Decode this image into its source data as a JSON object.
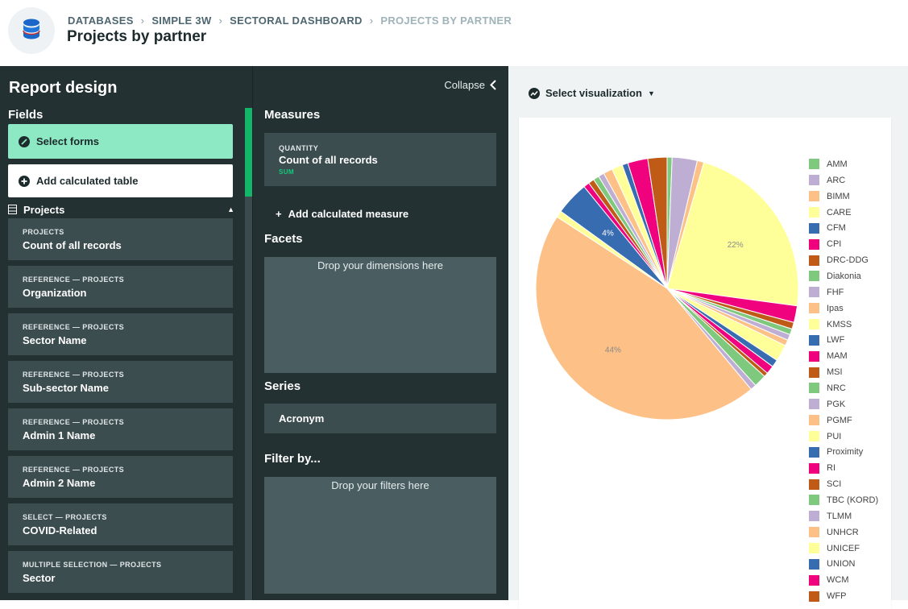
{
  "header": {
    "breadcrumbs": [
      "DATABASES",
      "SIMPLE 3W",
      "SECTORAL DASHBOARD",
      "PROJECTS BY PARTNER"
    ],
    "title": "Projects by partner"
  },
  "left": {
    "title": "Report design",
    "fields_label": "Fields",
    "select_forms_label": "Select forms",
    "add_table_label": "Add calculated table",
    "section_label": "Projects",
    "fields": [
      {
        "kind": "PROJECTS",
        "name": "Count of all records"
      },
      {
        "kind": "REFERENCE — PROJECTS",
        "name": "Organization"
      },
      {
        "kind": "REFERENCE — PROJECTS",
        "name": "Sector Name"
      },
      {
        "kind": "REFERENCE — PROJECTS",
        "name": "Sub-sector Name"
      },
      {
        "kind": "REFERENCE — PROJECTS",
        "name": "Admin 1 Name"
      },
      {
        "kind": "REFERENCE — PROJECTS",
        "name": "Admin 2 Name"
      },
      {
        "kind": "SELECT — PROJECTS",
        "name": "COVID-Related"
      },
      {
        "kind": "MULTIPLE SELECTION — PROJECTS",
        "name": "Sector"
      }
    ]
  },
  "middle": {
    "collapse_label": "Collapse",
    "measures_title": "Measures",
    "measure": {
      "kind": "QUANTITY",
      "name": "Count of all records",
      "agg": "SUM"
    },
    "add_measure_label": "Add calculated measure",
    "facets_title": "Facets",
    "facets_drop": "Drop your dimensions here",
    "series_title": "Series",
    "series_item": "Acronym",
    "filter_title": "Filter by...",
    "filter_drop": "Drop your filters here"
  },
  "right": {
    "viz_select_label": "Select visualization"
  },
  "chart_data": {
    "type": "pie",
    "title": "",
    "palette": [
      "#7fc97f",
      "#beaed4",
      "#fdc086",
      "#ffff99",
      "#386cb0",
      "#f0027f",
      "#bf5b17"
    ],
    "legend_position": "right",
    "slices": [
      {
        "label": "AMM",
        "value": 0.6,
        "color": "#7fc97f"
      },
      {
        "label": "ARC",
        "value": 3.0,
        "color": "#beaed4"
      },
      {
        "label": "BIMM",
        "value": 0.8,
        "color": "#fdc086"
      },
      {
        "label": "CARE",
        "value": 22.0,
        "color": "#ffff99",
        "text": "22%"
      },
      {
        "label": "CPI",
        "value": 2.0,
        "color": "#f0027f"
      },
      {
        "label": "DRC-DDG",
        "value": 0.8,
        "color": "#bf5b17"
      },
      {
        "label": "NRC",
        "value": 0.7,
        "color": "#7fc97f"
      },
      {
        "label": "PGK",
        "value": 0.7,
        "color": "#beaed4"
      },
      {
        "label": "PGMF",
        "value": 0.7,
        "color": "#fdc086"
      },
      {
        "label": "PUI",
        "value": 2.0,
        "color": "#ffff99"
      },
      {
        "label": "LWF",
        "value": 0.9,
        "color": "#386cb0"
      },
      {
        "label": "CPI",
        "value": 1.0,
        "color": "#f0027f"
      },
      {
        "label": "MSI",
        "value": 0.5,
        "color": "#bf5b17"
      },
      {
        "label": "NRC",
        "value": 1.5,
        "color": "#7fc97f"
      },
      {
        "label": "FHF",
        "value": 0.7,
        "color": "#beaed4"
      },
      {
        "label": "UNHCR",
        "value": 44.0,
        "color": "#fdc086",
        "text": "44%"
      },
      {
        "label": "UNICEF",
        "value": 0.8,
        "color": "#ffff99"
      },
      {
        "label": "CFM",
        "value": 4.0,
        "color": "#386cb0",
        "text": "4%"
      },
      {
        "label": "RI",
        "value": 0.7,
        "color": "#f0027f"
      },
      {
        "label": "SCI",
        "value": 0.7,
        "color": "#bf5b17"
      },
      {
        "label": "TBC (KORD)",
        "value": 0.7,
        "color": "#7fc97f"
      },
      {
        "label": "TLMM",
        "value": 0.7,
        "color": "#beaed4"
      },
      {
        "label": "Ipas",
        "value": 1.1,
        "color": "#fdc086"
      },
      {
        "label": "KMSS",
        "value": 1.3,
        "color": "#ffff99"
      },
      {
        "label": "UNION",
        "value": 0.7,
        "color": "#386cb0"
      },
      {
        "label": "WCM",
        "value": 2.4,
        "color": "#f0027f"
      },
      {
        "label": "WFP",
        "value": 2.3,
        "color": "#bf5b17"
      }
    ],
    "legend": [
      {
        "label": "AMM",
        "color": "#7fc97f"
      },
      {
        "label": "ARC",
        "color": "#beaed4"
      },
      {
        "label": "BIMM",
        "color": "#fdc086"
      },
      {
        "label": "CARE",
        "color": "#ffff99"
      },
      {
        "label": "CFM",
        "color": "#386cb0"
      },
      {
        "label": "CPI",
        "color": "#f0027f"
      },
      {
        "label": "DRC-DDG",
        "color": "#bf5b17"
      },
      {
        "label": "Diakonia",
        "color": "#7fc97f"
      },
      {
        "label": "FHF",
        "color": "#beaed4"
      },
      {
        "label": "Ipas",
        "color": "#fdc086"
      },
      {
        "label": "KMSS",
        "color": "#ffff99"
      },
      {
        "label": "LWF",
        "color": "#386cb0"
      },
      {
        "label": "MAM",
        "color": "#f0027f"
      },
      {
        "label": "MSI",
        "color": "#bf5b17"
      },
      {
        "label": "NRC",
        "color": "#7fc97f"
      },
      {
        "label": "PGK",
        "color": "#beaed4"
      },
      {
        "label": "PGMF",
        "color": "#fdc086"
      },
      {
        "label": "PUI",
        "color": "#ffff99"
      },
      {
        "label": "Proximity",
        "color": "#386cb0"
      },
      {
        "label": "RI",
        "color": "#f0027f"
      },
      {
        "label": "SCI",
        "color": "#bf5b17"
      },
      {
        "label": "TBC (KORD)",
        "color": "#7fc97f"
      },
      {
        "label": "TLMM",
        "color": "#beaed4"
      },
      {
        "label": "UNHCR",
        "color": "#fdc086"
      },
      {
        "label": "UNICEF",
        "color": "#ffff99"
      },
      {
        "label": "UNION",
        "color": "#386cb0"
      },
      {
        "label": "WCM",
        "color": "#f0027f"
      },
      {
        "label": "WFP",
        "color": "#bf5b17"
      }
    ]
  }
}
